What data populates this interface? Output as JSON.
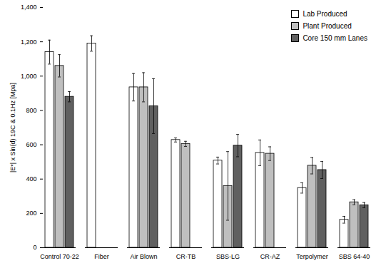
{
  "chart_data": {
    "type": "bar",
    "y_label": "|E*| x Sin(d) 19C & 0.1Hz [Mpa]",
    "categories": [
      "Control 70-22",
      "Fiber",
      "Air Blown",
      "CR-TB",
      "SBS-LG",
      "CR-AZ",
      "Terpolymer",
      "SBS 64-40"
    ],
    "series": [
      {
        "name": "Lab Produced",
        "color": "#ffffff",
        "values": [
          1140,
          1190,
          935,
          628,
          508,
          553,
          348,
          163
        ],
        "errors": [
          70,
          45,
          80,
          12,
          20,
          75,
          30,
          20
        ]
      },
      {
        "name": "Plant Produced",
        "color": "#bfbfbf",
        "values": [
          1060,
          null,
          935,
          605,
          360,
          548,
          478,
          265
        ],
        "errors": [
          65,
          null,
          85,
          15,
          200,
          40,
          48,
          15
        ]
      },
      {
        "name": "Core 150 mm Lanes",
        "color": "#606060",
        "values": [
          880,
          null,
          825,
          null,
          595,
          null,
          453,
          248
        ],
        "errors": [
          30,
          null,
          160,
          null,
          65,
          null,
          50,
          15
        ]
      }
    ],
    "ylim": [
      0,
      1400
    ],
    "yticks": [
      0,
      200,
      400,
      600,
      800,
      1000,
      1200,
      1400
    ],
    "grid": false,
    "legend": "top-right"
  }
}
